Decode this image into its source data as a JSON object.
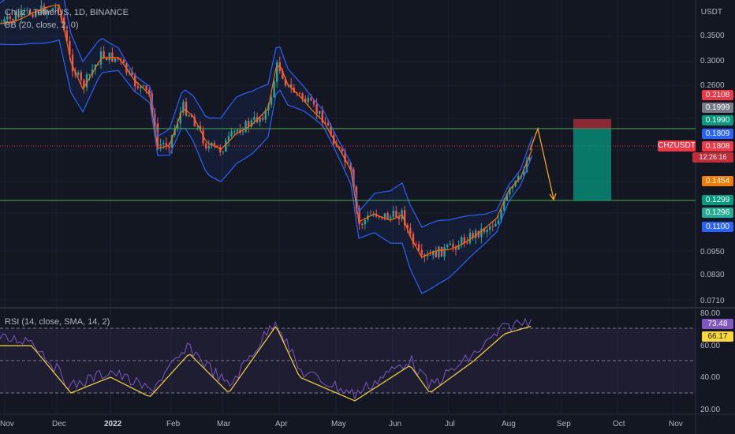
{
  "legend": {
    "symbol": "Chiliz / TetherUS, 1D, BINANCE",
    "bb": "BB (20, close, 2, 0)",
    "rsi": "RSI (14, close, SMA, 14, 2)"
  },
  "price_scale": {
    "title": "USDT",
    "labels": [
      "0.3500",
      "0.3000",
      "0.2600",
      "0.0950",
      "0.0830",
      "0.0710"
    ],
    "symbol_tag": "CHZUSDT",
    "timer": "12:26:16",
    "tags": [
      {
        "text": "0.2108",
        "color": "#f23645"
      },
      {
        "text": "0.1999",
        "color": "#787b86"
      },
      {
        "text": "0.1990",
        "color": "#089981"
      },
      {
        "text": "0.1809",
        "color": "#2962ff"
      },
      {
        "text": "0.1808",
        "color": "#f23645"
      },
      {
        "text": "0.1454",
        "color": "#f57c00"
      },
      {
        "text": "0.1299",
        "color": "#089981"
      },
      {
        "text": "0.1296",
        "color": "#22ab94"
      },
      {
        "text": "0.1100",
        "color": "#2962ff"
      }
    ]
  },
  "rsi_scale": {
    "labels": [
      "80.00",
      "60.00",
      "40.00",
      "20.00"
    ],
    "tags": [
      {
        "text": "73.48",
        "color": "#7e57c2"
      },
      {
        "text": "66.17",
        "color": "#fdd835"
      }
    ]
  },
  "time_axis": {
    "labels": [
      {
        "text": "Nov",
        "bold": false
      },
      {
        "text": "Dec",
        "bold": false
      },
      {
        "text": "2022",
        "bold": true
      },
      {
        "text": "Feb",
        "bold": false
      },
      {
        "text": "Mar",
        "bold": false
      },
      {
        "text": "Apr",
        "bold": false
      },
      {
        "text": "May",
        "bold": false
      },
      {
        "text": "Jun",
        "bold": false
      },
      {
        "text": "Jul",
        "bold": false
      },
      {
        "text": "Aug",
        "bold": false
      },
      {
        "text": "Sep",
        "bold": false
      },
      {
        "text": "Oct",
        "bold": false
      },
      {
        "text": "Nov",
        "bold": false
      }
    ]
  },
  "colors": {
    "background": "#131722",
    "up_candle": "#26a69a",
    "down_candle": "#ef5350",
    "bb_band": "#2962ff",
    "bb_basis": "#ff6d00",
    "rsi_line": "#7e57c2",
    "rsi_ma": "#fdd835",
    "horizontal_line": "#4caf50",
    "arrow": "#f7a21b",
    "profit_zone": "#089981",
    "loss_zone": "#f23645"
  },
  "chart_data": {
    "type": "candlestick",
    "interval": "1D",
    "x_range": [
      "Nov 2021",
      "Nov 2022"
    ],
    "horizontal_levels": [
      0.199,
      0.1299
    ],
    "position": {
      "entry": 0.199,
      "stop": 0.2108,
      "target": 0.1299
    },
    "close_approx": [
      {
        "month": "Dec 2021",
        "close": 0.3
      },
      {
        "month": "Feb 2022",
        "close": 0.2
      },
      {
        "month": "Mar 2022",
        "close": 0.22
      },
      {
        "month": "Apr 2022",
        "close": 0.24
      },
      {
        "month": "May 2022",
        "close": 0.12
      },
      {
        "month": "Jun 2022",
        "close": 0.1
      },
      {
        "month": "Jul 2022",
        "close": 0.11
      },
      {
        "month": "Aug 2022",
        "close": 0.1808
      }
    ],
    "rsi": {
      "last": 73.48,
      "ma_last": 66.17,
      "levels": [
        70,
        50,
        30
      ]
    }
  }
}
